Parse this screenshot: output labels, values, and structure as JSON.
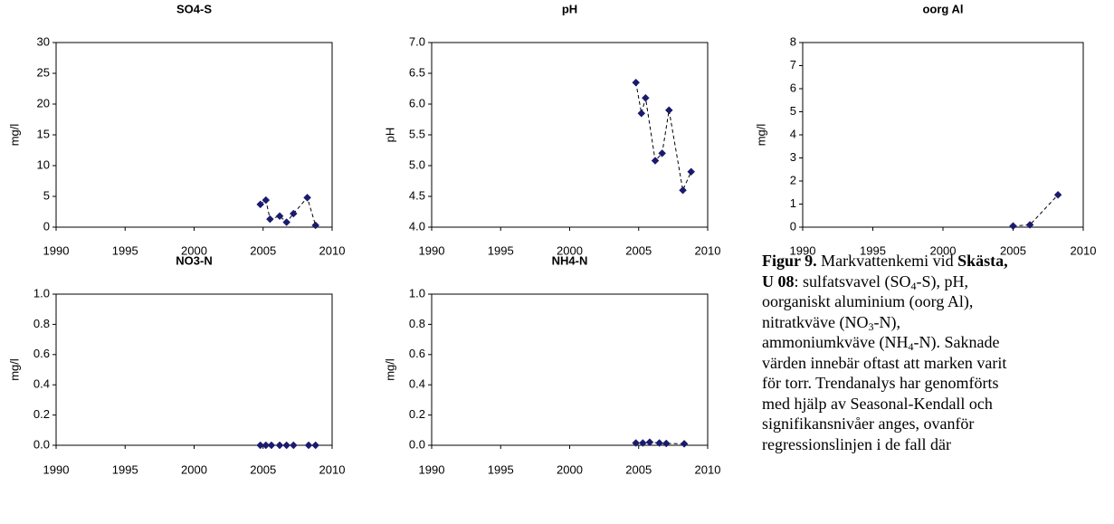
{
  "chart_data": [
    {
      "type": "line",
      "title": "SO4-S",
      "y_label": "mg/l",
      "x": [
        2004.8,
        2005.2,
        2005.5,
        2006.2,
        2006.7,
        2007.2,
        2008.2,
        2008.8
      ],
      "values": [
        3.7,
        4.4,
        1.3,
        1.8,
        0.8,
        2.2,
        4.8,
        0.3
      ],
      "color": "#1a1a6e",
      "line_style": "dashed",
      "xlim": [
        1990,
        2010
      ],
      "xticks": [
        1990,
        1995,
        2000,
        2005,
        2010
      ],
      "ylim": [
        0,
        30
      ],
      "yticks": [
        0,
        5,
        10,
        15,
        20,
        25,
        30
      ],
      "grid": false
    },
    {
      "type": "line",
      "title": "pH",
      "y_label": "pH",
      "x": [
        2004.8,
        2005.2,
        2005.5,
        2006.2,
        2006.7,
        2007.2,
        2008.2,
        2008.8
      ],
      "values": [
        6.35,
        5.85,
        6.1,
        5.08,
        5.2,
        5.9,
        4.6,
        4.9
      ],
      "color": "#1a1a6e",
      "line_style": "dashed",
      "xlim": [
        1990,
        2010
      ],
      "xticks": [
        1990,
        1995,
        2000,
        2005,
        2010
      ],
      "ylim": [
        4,
        7
      ],
      "yticks": [
        {
          "value": 4,
          "label": "4.0"
        },
        4.5,
        {
          "value": 5,
          "label": "5.0"
        },
        5.5,
        {
          "value": 6,
          "label": "6.0"
        },
        6.5,
        {
          "value": 7,
          "label": "7.0"
        }
      ],
      "grid": false
    },
    {
      "type": "line",
      "title": "oorg Al",
      "y_label": "mg/l",
      "x": [
        2005.0,
        2006.2,
        2008.2
      ],
      "values": [
        0.05,
        0.1,
        1.4
      ],
      "color": "#1a1a6e",
      "line_style": "dashed",
      "xlim": [
        1990,
        2010
      ],
      "xticks": [
        1990,
        1995,
        2000,
        2005,
        2010
      ],
      "ylim": [
        0,
        8
      ],
      "yticks": [
        0,
        1,
        2,
        3,
        4,
        5,
        6,
        7,
        8
      ],
      "grid": false
    },
    {
      "type": "line",
      "title": "NO3-N",
      "y_label": "mg/l",
      "x": [
        2004.8,
        2005.2,
        2005.6,
        2006.2,
        2006.7,
        2007.2,
        2008.3,
        2008.8
      ],
      "values": [
        0,
        0,
        0,
        0,
        0,
        0,
        0,
        0
      ],
      "color": "#1a1a6e",
      "line_style": "dashed",
      "xlim": [
        1990,
        2010
      ],
      "xticks": [
        1990,
        1995,
        2000,
        2005,
        2010
      ],
      "ylim": [
        0,
        1
      ],
      "yticks": [
        {
          "value": 0,
          "label": "0.0"
        },
        0.2,
        0.4,
        0.6,
        0.8,
        {
          "value": 1,
          "label": "1.0"
        }
      ],
      "grid": false
    },
    {
      "type": "line",
      "title": "NH4-N",
      "y_label": "mg/l",
      "x": [
        2004.8,
        2005.3,
        2005.8,
        2006.5,
        2007.0,
        2008.3
      ],
      "values": [
        0.015,
        0.015,
        0.02,
        0.015,
        0.012,
        0.01
      ],
      "color": "#1a1a6e",
      "line_style": "dashed",
      "xlim": [
        1990,
        2010
      ],
      "xticks": [
        1990,
        1995,
        2000,
        2005,
        2010
      ],
      "ylim": [
        0,
        1
      ],
      "yticks": [
        {
          "value": 0,
          "label": "0.0"
        },
        0.2,
        0.4,
        0.6,
        0.8,
        {
          "value": 1,
          "label": "1.0"
        }
      ],
      "grid": false
    }
  ],
  "caption": {
    "lines": [
      [
        {
          "text": "Figur 9.",
          "style": "bold"
        },
        {
          "text": " Markvattenkemi vid "
        },
        {
          "text": "Skästa,",
          "style": "bold"
        }
      ],
      [
        {
          "text": "U 08",
          "style": "bold"
        },
        {
          "text": ": sulfatsvavel (SO"
        },
        {
          "text": "4",
          "style": "sub"
        },
        {
          "text": "-S), pH,"
        }
      ],
      [
        {
          "text": "oorganiskt aluminium (oorg Al),"
        }
      ],
      [
        {
          "text": "nitratkväve (NO"
        },
        {
          "text": "3",
          "style": "sub"
        },
        {
          "text": "-N),"
        }
      ],
      [
        {
          "text": "ammoniumkväve (NH"
        },
        {
          "text": "4",
          "style": "sub"
        },
        {
          "text": "-N). Saknade"
        }
      ],
      [
        {
          "text": "värden innebär oftast att marken varit"
        }
      ],
      [
        {
          "text": "för torr. Trendanalys har genomförts"
        }
      ],
      [
        {
          "text": "med hjälp av Seasonal-Kendall och"
        }
      ],
      [
        {
          "text": "signifikansnivåer anges, ovanför"
        }
      ],
      [
        {
          "text": "regressionslinjen i de fall där"
        }
      ]
    ]
  }
}
